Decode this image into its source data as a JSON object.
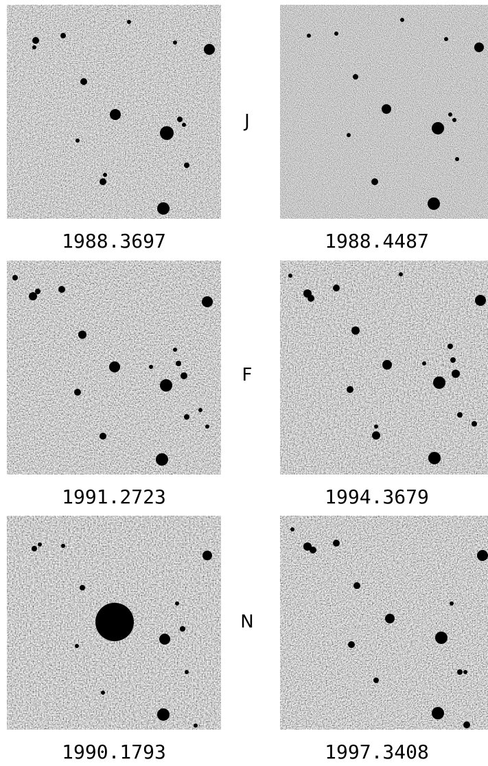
{
  "rows": [
    {
      "band": "J",
      "left": {
        "epoch": "1988.3697",
        "seed": 11,
        "noise_freq": 0.62
      },
      "right": {
        "epoch": "1988.4487",
        "seed": 23,
        "noise_freq": 0.95
      }
    },
    {
      "band": "F",
      "left": {
        "epoch": "1991.2723",
        "seed": 37,
        "noise_freq": 0.55
      },
      "right": {
        "epoch": "1994.3679",
        "seed": 41,
        "noise_freq": 0.58
      }
    },
    {
      "band": "N",
      "left": {
        "epoch": "1990.1793",
        "seed": 53,
        "noise_freq": 0.5
      },
      "right": {
        "epoch": "1997.3408",
        "seed": 67,
        "noise_freq": 0.55
      }
    }
  ],
  "colors": {
    "sky_background": "#b4b4b4",
    "star": "#000000",
    "label": "#000000"
  }
}
